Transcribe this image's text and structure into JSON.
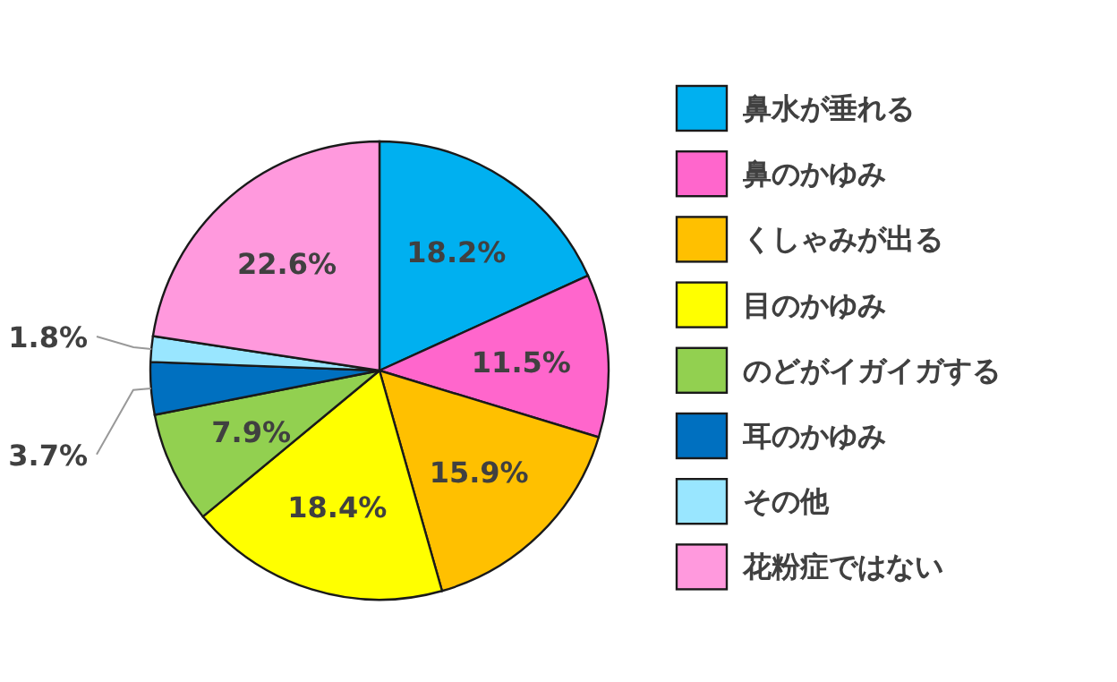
{
  "chart_data": {
    "type": "pie",
    "categories": [
      "鼻水が垂れる",
      "鼻のかゆみ",
      "くしゃみが出る",
      "目のかゆみ",
      "のどがイガイガする",
      "耳のかゆみ",
      "その他",
      "花粉症ではない"
    ],
    "values": [
      18.2,
      11.5,
      15.9,
      18.4,
      7.9,
      3.7,
      1.8,
      22.6
    ],
    "value_labels": [
      "18.2%",
      "11.5%",
      "15.9%",
      "18.4%",
      "7.9%",
      "3.7%",
      "1.8%",
      "22.6%"
    ],
    "colors": [
      "#00b0f0",
      "#ff66cc",
      "#ffc000",
      "#ffff00",
      "#92d050",
      "#0070c0",
      "#99e6ff",
      "#ff99dd"
    ],
    "legend": "right"
  }
}
